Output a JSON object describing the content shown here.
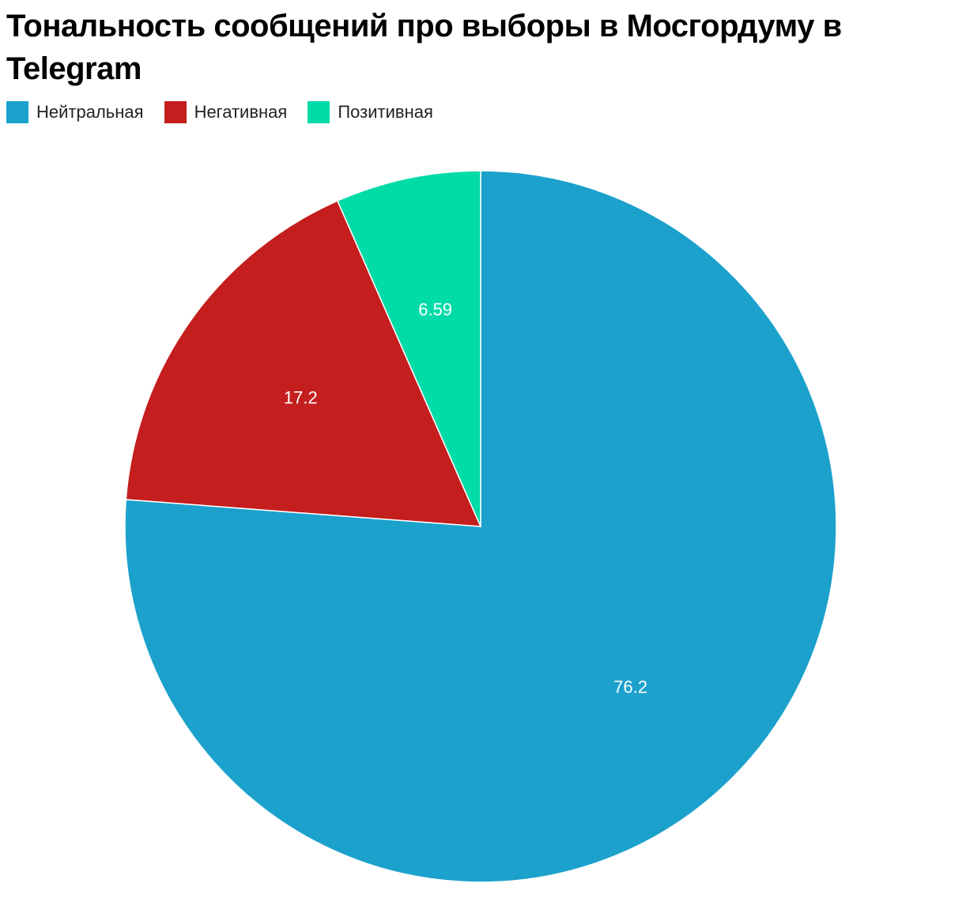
{
  "chart_data": {
    "type": "pie",
    "title": "Тональность сообщений про выборы в Мосгордуму в Telegram",
    "categories": [
      "Нейтральная",
      "Негативная",
      "Позитивная"
    ],
    "values": [
      76.2,
      17.2,
      6.59
    ],
    "colors": [
      "#1ba1cc",
      "#c41e1e",
      "#00dba7"
    ],
    "legend": "top-left"
  }
}
